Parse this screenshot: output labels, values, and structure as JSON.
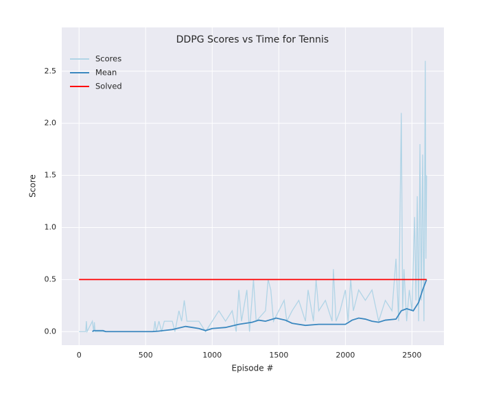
{
  "chart_data": {
    "type": "line",
    "title": "DDPG Scores vs Time for Tennis",
    "x_label": "Episode #",
    "y_label": "Score",
    "xlim": [
      -130,
      2740
    ],
    "ylim": [
      -0.13,
      2.92
    ],
    "xticks": [
      0,
      500,
      1000,
      1500,
      2000,
      2500
    ],
    "yticks": [
      {
        "value": 0,
        "label": "0.0"
      },
      0.5,
      {
        "value": 1,
        "label": "1.0"
      },
      1.5,
      {
        "value": 2,
        "label": "2.0"
      },
      2.5
    ],
    "grid": true,
    "legend": "upper-left",
    "series": [
      {
        "name": "Scores",
        "color": "#b0d4e6",
        "x": [
          0,
          50,
          55,
          60,
          100,
          110,
          115,
          120,
          300,
          560,
          570,
          580,
          600,
          620,
          640,
          700,
          720,
          750,
          770,
          790,
          810,
          900,
          950,
          1000,
          1050,
          1100,
          1150,
          1180,
          1200,
          1220,
          1260,
          1280,
          1310,
          1330,
          1400,
          1420,
          1440,
          1460,
          1500,
          1540,
          1560,
          1600,
          1650,
          1700,
          1720,
          1760,
          1780,
          1800,
          1850,
          1900,
          1910,
          1930,
          1960,
          2000,
          2020,
          2040,
          2060,
          2100,
          2150,
          2200,
          2250,
          2300,
          2350,
          2380,
          2400,
          2420,
          2430,
          2440,
          2460,
          2480,
          2500,
          2520,
          2530,
          2540,
          2550,
          2560,
          2570,
          2580,
          2590,
          2600,
          2605,
          2610
        ],
        "values": [
          0,
          0,
          0.1,
          0,
          0.1,
          0,
          0.09,
          0,
          0,
          0,
          0.1,
          0,
          0.1,
          0,
          0.1,
          0.1,
          0,
          0.2,
          0.1,
          0.3,
          0.1,
          0.1,
          0,
          0.1,
          0.2,
          0.1,
          0.2,
          0,
          0.4,
          0.1,
          0.4,
          0,
          0.5,
          0.1,
          0.2,
          0.5,
          0.4,
          0.1,
          0.2,
          0.3,
          0.1,
          0.2,
          0.3,
          0.1,
          0.4,
          0.1,
          0.5,
          0.2,
          0.3,
          0.1,
          0.6,
          0.1,
          0.2,
          0.4,
          0.1,
          0.5,
          0.2,
          0.4,
          0.3,
          0.4,
          0.1,
          0.3,
          0.2,
          0.7,
          0.1,
          2.1,
          0.2,
          0.6,
          0.1,
          0.4,
          0.2,
          1.1,
          0.3,
          1.3,
          0.1,
          1.8,
          0.3,
          1.7,
          0.1,
          2.6,
          0.7,
          1.5
        ]
      },
      {
        "name": "Mean",
        "color": "#3a87bf",
        "x": [
          100,
          110,
          180,
          200,
          550,
          600,
          700,
          800,
          850,
          900,
          950,
          1000,
          1100,
          1200,
          1300,
          1350,
          1400,
          1480,
          1550,
          1600,
          1700,
          1800,
          1900,
          2000,
          2050,
          2100,
          2150,
          2200,
          2250,
          2300,
          2380,
          2420,
          2460,
          2510,
          2550,
          2580,
          2610
        ],
        "values": [
          0,
          0.01,
          0.01,
          0,
          0,
          0.005,
          0.02,
          0.05,
          0.04,
          0.03,
          0.01,
          0.03,
          0.04,
          0.07,
          0.09,
          0.11,
          0.1,
          0.13,
          0.11,
          0.08,
          0.06,
          0.07,
          0.07,
          0.07,
          0.11,
          0.13,
          0.12,
          0.1,
          0.09,
          0.11,
          0.12,
          0.2,
          0.22,
          0.2,
          0.28,
          0.4,
          0.5
        ]
      },
      {
        "name": "Solved",
        "color": "#ff0000",
        "x": [
          0,
          2610
        ],
        "values": [
          0.5,
          0.5
        ]
      }
    ]
  }
}
